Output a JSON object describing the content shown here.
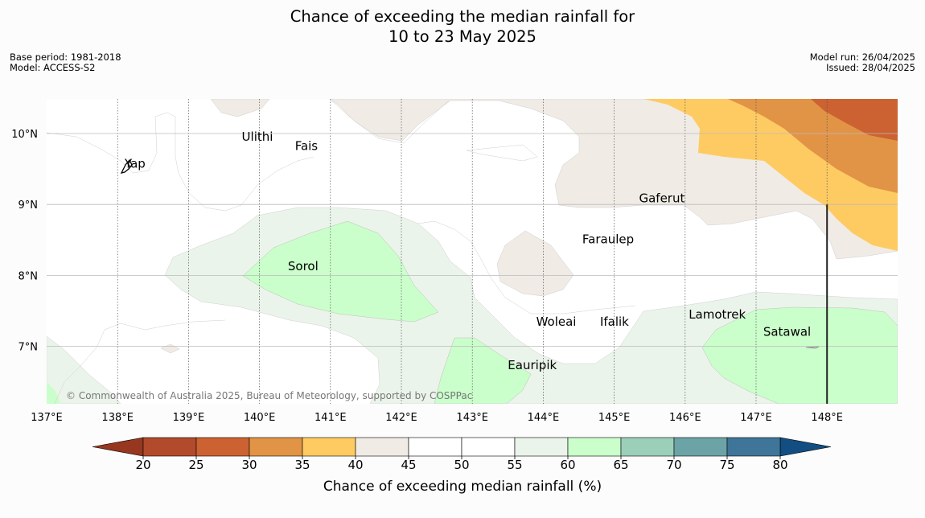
{
  "title_line1": "Chance of exceeding the median rainfall for",
  "title_line2": "10 to 23 May 2025",
  "meta_left": [
    "Base period: 1981-2018",
    "Model: ACCESS-S2"
  ],
  "meta_right": [
    "Model run: 26/04/2025",
    "Issued: 28/04/2025"
  ],
  "copyright": "© Commonwealth of Australia 2025, Bureau of Meteorology, supported by COSPPac",
  "map": {
    "lon_range": [
      137.0,
      149.0
    ],
    "lat_range": [
      6.2,
      10.5
    ],
    "longitudes": [
      {
        "value": 137,
        "label": "137°E"
      },
      {
        "value": 138,
        "label": "138°E"
      },
      {
        "value": 139,
        "label": "139°E"
      },
      {
        "value": 140,
        "label": "140°E"
      },
      {
        "value": 141,
        "label": "141°E"
      },
      {
        "value": 142,
        "label": "142°E"
      },
      {
        "value": 143,
        "label": "143°E"
      },
      {
        "value": 144,
        "label": "144°E"
      },
      {
        "value": 145,
        "label": "145°E"
      },
      {
        "value": 146,
        "label": "146°E"
      },
      {
        "value": 147,
        "label": "147°E"
      },
      {
        "value": 148,
        "label": "148°E"
      }
    ],
    "latitudes": [
      {
        "value": 10,
        "label": "10°N"
      },
      {
        "value": 9,
        "label": "9°N"
      },
      {
        "value": 8,
        "label": "8°N"
      },
      {
        "value": 7,
        "label": "7°N"
      }
    ],
    "places": [
      {
        "name": "Yap",
        "lon": 138.1,
        "lat": 9.52
      },
      {
        "name": "Ulithi",
        "lon": 139.75,
        "lat": 9.9
      },
      {
        "name": "Fais",
        "lon": 140.5,
        "lat": 9.77
      },
      {
        "name": "Gaferut",
        "lon": 145.35,
        "lat": 9.03
      },
      {
        "name": "Faraulep",
        "lon": 144.55,
        "lat": 8.45
      },
      {
        "name": "Sorol",
        "lon": 140.4,
        "lat": 8.07
      },
      {
        "name": "Lamotrek",
        "lon": 146.05,
        "lat": 7.39
      },
      {
        "name": "Woleai",
        "lon": 143.9,
        "lat": 7.29
      },
      {
        "name": "Ifalik",
        "lon": 144.8,
        "lat": 7.29
      },
      {
        "name": "Satawal",
        "lon": 147.1,
        "lat": 7.15
      },
      {
        "name": "Eauripik",
        "lon": 143.5,
        "lat": 6.68
      }
    ]
  },
  "colorbar": {
    "ticks": [
      "20",
      "25",
      "30",
      "35",
      "40",
      "45",
      "50",
      "55",
      "60",
      "65",
      "70",
      "75",
      "80"
    ],
    "colors": [
      "#b14b2c",
      "#cc6231",
      "#e19445",
      "#fecb63",
      "#f0ebe5",
      "#ffffff",
      "#ffffff",
      "#ebf4ea",
      "#caffcb",
      "#9ccfba",
      "#6ca3a6",
      "#3f7598"
    ],
    "under_color": "#97371f",
    "over_color": "#134e82",
    "label": "Chance of exceeding median rainfall (%)"
  },
  "colors": {
    "band_40_45": "#f0ebe5",
    "band_35_40": "#fecb63",
    "band_30_35": "#e19445",
    "band_25_30": "#cc6231",
    "band_55_60": "#ebf4ea",
    "band_60_65": "#caffcb"
  }
}
